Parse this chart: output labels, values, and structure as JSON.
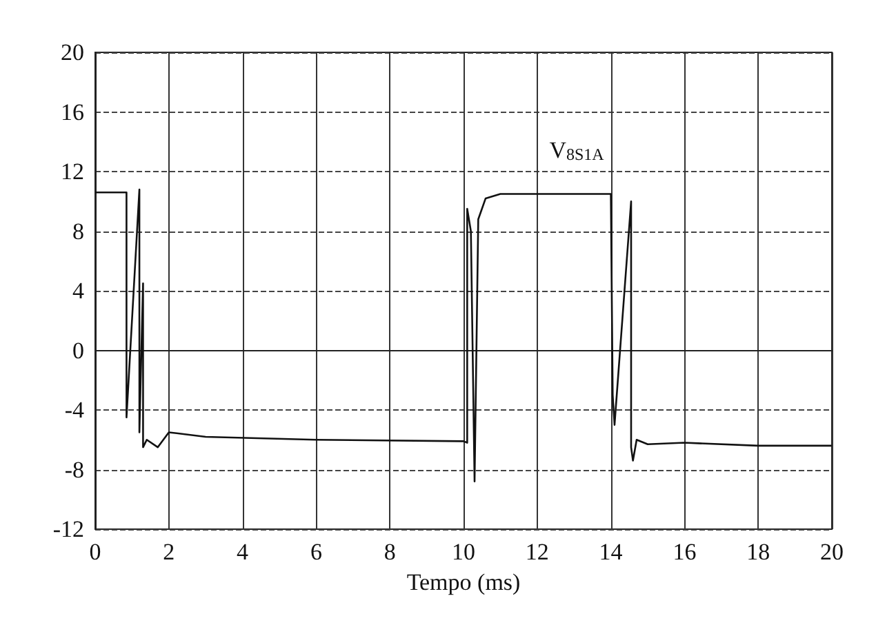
{
  "chart_data": {
    "type": "line",
    "xlabel": "Tempo (ms)",
    "xlim": [
      0,
      20
    ],
    "xticks": [
      0,
      2,
      4,
      6,
      8,
      10,
      12,
      14,
      16,
      18,
      20
    ],
    "ylim": [
      -12,
      20
    ],
    "yticks": [
      -12,
      -8,
      -4,
      0,
      4,
      8,
      12,
      16,
      20
    ],
    "grid": true,
    "marker": "none",
    "line_style": "solid",
    "series": [
      {
        "color": "#111111",
        "x": [
          0,
          0.85,
          0.85,
          1.2,
          1.2,
          1.3,
          1.3,
          1.4,
          1.7,
          2,
          3,
          6,
          10,
          10.1,
          10.1,
          10.2,
          10.3,
          10.4,
          10.6,
          11,
          12,
          14,
          14.05,
          14.1,
          14.55,
          14.55,
          14.6,
          14.7,
          15,
          16,
          18,
          20
        ],
        "values": [
          10.6,
          10.6,
          -4.5,
          10.8,
          -5.5,
          4.5,
          -6.5,
          -6,
          -6.5,
          -5.5,
          -5.8,
          -6,
          -6.1,
          -6.2,
          9.5,
          8,
          -8.8,
          8.8,
          10.2,
          10.5,
          10.5,
          10.5,
          -3,
          -5,
          10,
          -6.5,
          -7.4,
          -6,
          -6.3,
          -6.2,
          -6.4,
          -6.4
        ]
      }
    ],
    "annotations": [
      "V$_{8S1A}$"
    ]
  }
}
